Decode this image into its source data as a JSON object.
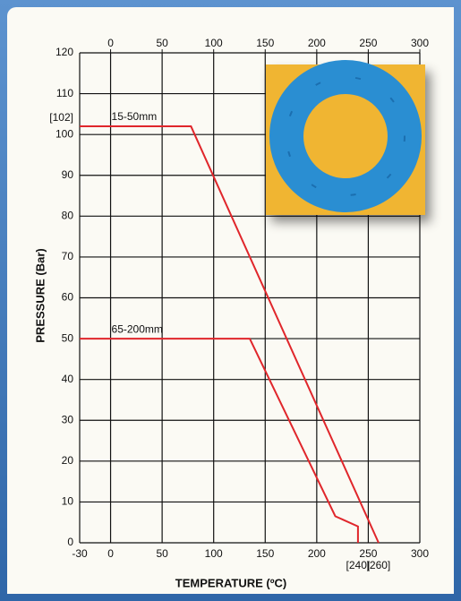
{
  "chart_data": {
    "type": "line",
    "xlabel": "TEMPERATURE (ºC)",
    "ylabel": "PRESSURE (Bar)",
    "xlim": [
      -30,
      300
    ],
    "ylim": [
      0,
      120
    ],
    "xticks": [
      -30,
      0,
      50,
      100,
      150,
      200,
      250,
      300
    ],
    "x2ticks": [
      0,
      50,
      100,
      150,
      200,
      250,
      300
    ],
    "yticks": [
      0,
      10,
      20,
      30,
      40,
      50,
      60,
      70,
      80,
      90,
      100,
      110,
      120
    ],
    "x_markers": [
      {
        "value": 240,
        "label": "[240]"
      },
      {
        "value": 260,
        "label": "[260]"
      }
    ],
    "y_markers": [
      {
        "value": 102,
        "label": "[102]"
      }
    ],
    "grid": true,
    "series": [
      {
        "name": "15-50mm",
        "color": "#e0262b",
        "x": [
          -30,
          78,
          260
        ],
        "values": [
          102,
          102,
          0
        ]
      },
      {
        "name": "65-200mm",
        "color": "#e0262b",
        "x": [
          -30,
          135,
          218,
          240,
          240
        ],
        "values": [
          50,
          50,
          6.5,
          4,
          0
        ]
      }
    ]
  }
}
